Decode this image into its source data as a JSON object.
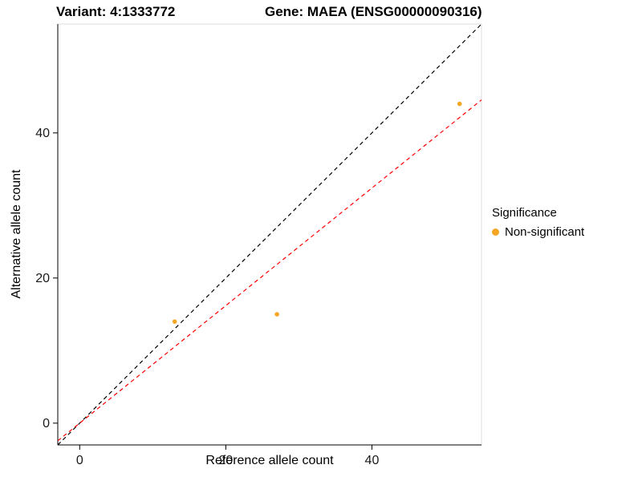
{
  "titles": {
    "variant": "Variant: 4:1333772",
    "gene": "Gene: MAEA (ENSG00000090316)"
  },
  "chart_data": {
    "type": "scatter",
    "xlabel": "Reference allele count",
    "ylabel": "Alternative allele count",
    "xlim": [
      -3,
      55
    ],
    "ylim": [
      -3,
      55
    ],
    "x_ticks": [
      0,
      20,
      40
    ],
    "y_ticks": [
      0,
      20,
      40
    ],
    "grid": false,
    "point_color": "#F5A623",
    "points": [
      {
        "x": 13,
        "y": 14,
        "series": "Non-significant"
      },
      {
        "x": 27,
        "y": 15,
        "series": "Non-significant"
      },
      {
        "x": 52,
        "y": 44,
        "series": "Non-significant"
      }
    ],
    "lines": [
      {
        "name": "identity",
        "slope": 1.0,
        "intercept": 0,
        "color": "#000000",
        "dash": "5,4"
      },
      {
        "name": "fit",
        "slope": 0.81,
        "intercept": 0,
        "color": "#FF0000",
        "dash": "5,4"
      }
    ],
    "legend": {
      "title": "Significance",
      "position": "right",
      "entries": [
        {
          "label": "Non-significant",
          "color": "#F5A623"
        }
      ]
    }
  }
}
